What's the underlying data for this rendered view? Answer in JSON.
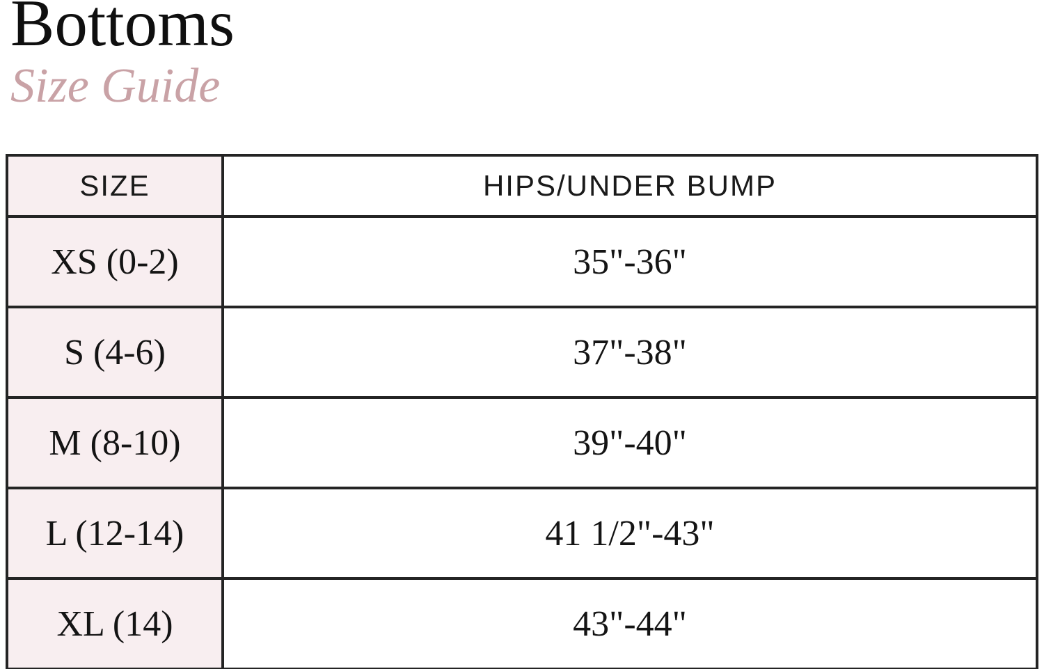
{
  "page": {
    "title": "Bottoms",
    "subtitle": "Size Guide"
  },
  "colors": {
    "title_text": "#0f0f0f",
    "subtitle_text": "#c9a2a6",
    "size_column_background": "#f8eef0",
    "hips_column_background": "#ffffff",
    "table_border": "#242424",
    "body_text": "#141414"
  },
  "table": {
    "columns": [
      {
        "label": "SIZE"
      },
      {
        "label": "HIPS/UNDER BUMP"
      }
    ],
    "rows": [
      {
        "size": "XS (0-2)",
        "hips": "35\"-36\""
      },
      {
        "size": "S (4-6)",
        "hips": "37\"-38\""
      },
      {
        "size": "M (8-10)",
        "hips": "39\"-40\""
      },
      {
        "size": "L (12-14)",
        "hips": "41 1/2\"-43\""
      },
      {
        "size": "XL (14)",
        "hips": "43\"-44\""
      }
    ]
  }
}
